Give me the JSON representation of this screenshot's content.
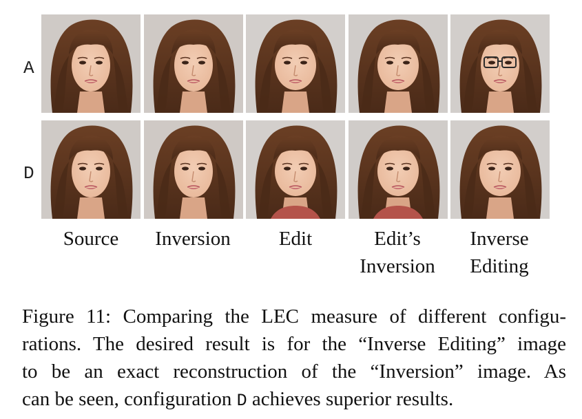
{
  "figure": {
    "rows": [
      {
        "label": "A"
      },
      {
        "label": "D"
      }
    ],
    "columns": [
      {
        "line1": "Source",
        "line2": ""
      },
      {
        "line1": "Inversion",
        "line2": ""
      },
      {
        "line1": "Edit",
        "line2": ""
      },
      {
        "line1": "Edit’s",
        "line2": "Inversion"
      },
      {
        "line1": "Inverse",
        "line2": "Editing"
      }
    ],
    "caption": {
      "line1": "Figure 11: Comparing the LEC measure of different configu-",
      "line2": "rations. The desired result is for the “Inverse Editing” image",
      "line3": "to be an exact reconstruction of the “Inversion” image. As",
      "line4_before": "can be seen, configuration",
      "line4_config": "D",
      "line4_after": "achieves superior results."
    }
  },
  "colors": {
    "hair_dark": "#4a2a18",
    "hair_mid": "#6b3f24",
    "skin": "#e8b89a",
    "background": "#c9c5c2"
  }
}
